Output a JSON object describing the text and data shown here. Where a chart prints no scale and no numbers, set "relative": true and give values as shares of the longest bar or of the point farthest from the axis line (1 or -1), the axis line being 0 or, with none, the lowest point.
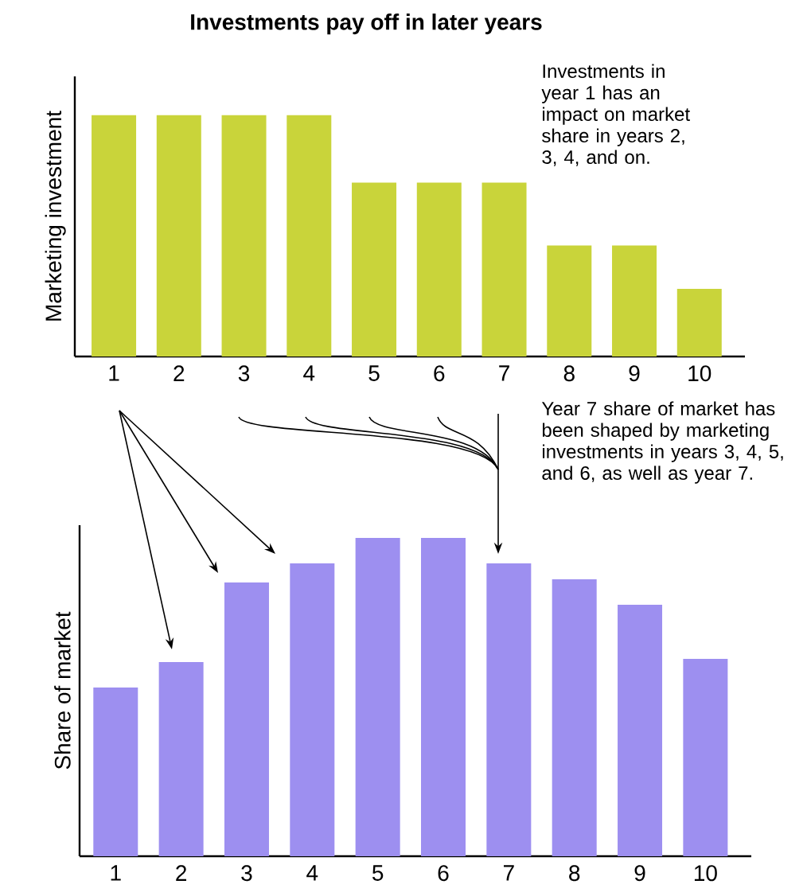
{
  "chart_data": [
    {
      "type": "bar",
      "title": "Investments pay off in later years",
      "ylabel": "Marketing investment",
      "relative": true,
      "categories": [
        "1",
        "2",
        "3",
        "4",
        "5",
        "6",
        "7",
        "8",
        "9",
        "10"
      ],
      "values": [
        1,
        1,
        1,
        1,
        0.72,
        0.72,
        0.72,
        0.46,
        0.46,
        0.28
      ],
      "color": "#c9d43a",
      "annotations": [
        "Investments in year 1 has an impact on market share in years 2, 3, 4, and on."
      ]
    },
    {
      "type": "bar",
      "ylabel": "Share of market",
      "relative": true,
      "categories": [
        "1",
        "2",
        "3",
        "4",
        "5",
        "6",
        "7",
        "8",
        "9",
        "10"
      ],
      "values": [
        0.53,
        0.61,
        0.86,
        0.92,
        1,
        1,
        0.92,
        0.87,
        0.79,
        0.62
      ],
      "color": "#9d8ff0",
      "annotations": [
        "Year 7 share of market has been shaped by marketing investments in years 3, 4, 5, and 6, as well as year 7."
      ]
    }
  ]
}
